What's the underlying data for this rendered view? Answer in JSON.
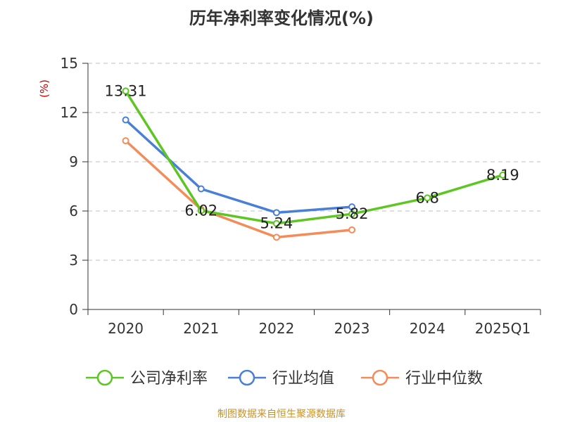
{
  "chart_data": {
    "type": "line",
    "title": "历年净利率变化情况(%)",
    "ylabel": "(%)",
    "xlabel": "",
    "categories": [
      "2020",
      "2021",
      "2022",
      "2023",
      "2024",
      "2025Q1"
    ],
    "ylim": [
      0,
      15
    ],
    "yticks": [
      0,
      3,
      6,
      9,
      12,
      15
    ],
    "grid": "horizontal dashed",
    "legend_position": "bottom",
    "series": [
      {
        "name": "公司净利率",
        "color": "#5dc623",
        "values": [
          13.31,
          6.02,
          5.24,
          5.82,
          6.8,
          8.19
        ],
        "labels": [
          "13.31",
          "6.02",
          "5.24",
          "5.82",
          "6.8",
          "8.19"
        ]
      },
      {
        "name": "行业均值",
        "color": "#4a7fd8",
        "values": [
          11.55,
          7.35,
          5.9,
          6.25,
          null,
          null
        ],
        "labels": []
      },
      {
        "name": "行业中位数",
        "color": "#f48c5a",
        "values": [
          10.28,
          6.1,
          4.4,
          4.85,
          null,
          null
        ],
        "labels": []
      }
    ]
  },
  "source_note": "制图数据来自恒生聚源数据库",
  "colors": {
    "title": "#333333",
    "axis": "#333333",
    "grid": "#cccccc",
    "ylabel": "#cc0000",
    "source": "#c8922a"
  }
}
